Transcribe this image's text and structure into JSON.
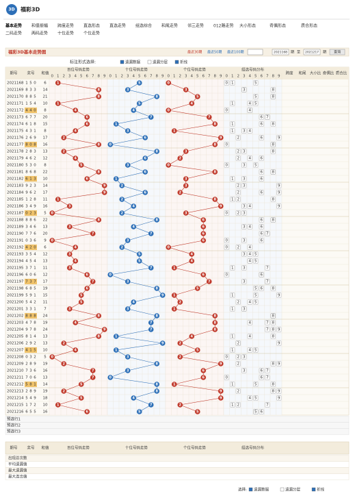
{
  "header": {
    "logo": "3D",
    "title": "福彩3D"
  },
  "nav": [
    "基本走势",
    "和值振幅",
    "跨度走势",
    "直选形态",
    "直选走势",
    "组选综合",
    "和尾走势",
    "邻三走势",
    "012路走势",
    "大小形态",
    "奇偶形态",
    "质合形态",
    "二码走势",
    "两码走势",
    "十位走势",
    "个位走势"
  ],
  "toolbar": {
    "title": "福彩3D基本走势图",
    "ranges": [
      "最近30期",
      "最近50期",
      "最近100期"
    ],
    "start": "2021168",
    "to": "至",
    "end": "2021217",
    "unit": "期",
    "query": "查询"
  },
  "options": {
    "label": "标注形式选择:",
    "items": [
      "遗漏数据",
      "遗漏分层",
      "折线"
    ]
  },
  "columns": {
    "issue": "期号",
    "number": "奖号",
    "sum": "和值",
    "groups": [
      "百位号码走势",
      "十位号码走势",
      "个位号码走势",
      "组选号码分布"
    ],
    "extra": [
      "跨度",
      "和尾",
      "大小比",
      "奇偶比",
      "质合比"
    ]
  },
  "digit_labels": [
    0,
    1,
    2,
    3,
    4,
    5,
    6,
    7,
    8,
    9
  ],
  "rows": [
    {
      "issue": "2021168",
      "digits": [
        1,
        5,
        0
      ],
      "sum": 6
    },
    {
      "issue": "2021169",
      "digits": [
        8,
        3,
        3
      ],
      "sum": 14
    },
    {
      "issue": "2021170",
      "digits": [
        8,
        8,
        5
      ],
      "sum": 21
    },
    {
      "issue": "2021171",
      "digits": [
        1,
        5,
        4
      ],
      "sum": 10
    },
    {
      "issue": "2021172",
      "digits": [
        4,
        4,
        0
      ],
      "sum": 8
    },
    {
      "issue": "2021173",
      "digits": [
        6,
        7,
        7
      ],
      "sum": 20
    },
    {
      "issue": "2021174",
      "digits": [
        6,
        1,
        8
      ],
      "sum": 15
    },
    {
      "issue": "2021175",
      "digits": [
        4,
        3,
        1
      ],
      "sum": 8
    },
    {
      "issue": "2021176",
      "digits": [
        2,
        6,
        9
      ],
      "sum": 17
    },
    {
      "issue": "2021177",
      "digits": [
        8,
        0,
        8
      ],
      "sum": 16
    },
    {
      "issue": "2021178",
      "digits": [
        2,
        8,
        3
      ],
      "sum": 13
    },
    {
      "issue": "2021179",
      "digits": [
        4,
        6,
        2
      ],
      "sum": 12
    },
    {
      "issue": "2021180",
      "digits": [
        5,
        3,
        0
      ],
      "sum": 8
    },
    {
      "issue": "2021181",
      "digits": [
        8,
        6,
        8
      ],
      "sum": 22
    },
    {
      "issue": "2021182",
      "digits": [
        6,
        1,
        3
      ],
      "sum": 10
    },
    {
      "issue": "2021183",
      "digits": [
        9,
        2,
        3
      ],
      "sum": 14
    },
    {
      "issue": "2021184",
      "digits": [
        9,
        6,
        2
      ],
      "sum": 17
    },
    {
      "issue": "2021185",
      "digits": [
        1,
        2,
        8
      ],
      "sum": 11
    },
    {
      "issue": "2021186",
      "digits": [
        3,
        4,
        9
      ],
      "sum": 16
    },
    {
      "issue": "2021187",
      "digits": [
        0,
        2,
        3
      ],
      "sum": 5
    },
    {
      "issue": "2021188",
      "digits": [
        8,
        8,
        6
      ],
      "sum": 22
    },
    {
      "issue": "2021189",
      "digits": [
        3,
        4,
        6
      ],
      "sum": 13
    },
    {
      "issue": "2021190",
      "digits": [
        7,
        7,
        6
      ],
      "sum": 20
    },
    {
      "issue": "2021191",
      "digits": [
        0,
        3,
        6
      ],
      "sum": 9
    },
    {
      "issue": "2021192",
      "digits": [
        4,
        2,
        0
      ],
      "sum": 6
    },
    {
      "issue": "2021193",
      "digits": [
        3,
        5,
        4
      ],
      "sum": 12
    },
    {
      "issue": "2021194",
      "digits": [
        4,
        5,
        4
      ],
      "sum": 13
    },
    {
      "issue": "2021195",
      "digits": [
        3,
        7,
        1
      ],
      "sum": 11
    },
    {
      "issue": "2021196",
      "digits": [
        6,
        0,
        6
      ],
      "sum": 12
    },
    {
      "issue": "2021197",
      "digits": [
        7,
        3,
        7
      ],
      "sum": 17
    },
    {
      "issue": "2021198",
      "digits": [
        6,
        8,
        5
      ],
      "sum": 19
    },
    {
      "issue": "2021199",
      "digits": [
        5,
        9,
        1
      ],
      "sum": 15
    },
    {
      "issue": "2021200",
      "digits": [
        5,
        4,
        2
      ],
      "sum": 11
    },
    {
      "issue": "2021201",
      "digits": [
        3,
        3,
        1
      ],
      "sum": 7
    },
    {
      "issue": "2021202",
      "digits": [
        8,
        8,
        8
      ],
      "sum": 24
    },
    {
      "issue": "2021203",
      "digits": [
        4,
        7,
        8
      ],
      "sum": 19
    },
    {
      "issue": "2021204",
      "digits": [
        9,
        7,
        8
      ],
      "sum": 24
    },
    {
      "issue": "2021205",
      "digits": [
        8,
        1,
        4
      ],
      "sum": 13
    },
    {
      "issue": "2021206",
      "digits": [
        2,
        9,
        2
      ],
      "sum": 13
    },
    {
      "issue": "2021207",
      "digits": [
        4,
        1,
        5
      ],
      "sum": 10
    },
    {
      "issue": "2021208",
      "digits": [
        0,
        3,
        2
      ],
      "sum": 5
    },
    {
      "issue": "2021209",
      "digits": [
        2,
        8,
        9
      ],
      "sum": 19
    },
    {
      "issue": "2021210",
      "digits": [
        7,
        3,
        6
      ],
      "sum": 16
    },
    {
      "issue": "2021211",
      "digits": [
        7,
        0,
        6
      ],
      "sum": 13
    },
    {
      "issue": "2021212",
      "digits": [
        5,
        8,
        1
      ],
      "sum": 14
    },
    {
      "issue": "2021213",
      "digits": [
        2,
        8,
        9
      ],
      "sum": 19
    },
    {
      "issue": "2021214",
      "digits": [
        5,
        4,
        9
      ],
      "sum": 18
    },
    {
      "issue": "2021215",
      "digits": [
        1,
        7,
        2
      ],
      "sum": 10
    },
    {
      "issue": "2021216",
      "digits": [
        6,
        5,
        5
      ],
      "sum": 16
    }
  ],
  "forecast": [
    "预选行1",
    "预选行2",
    "预选行3"
  ],
  "stats": [
    "出现总次数",
    "平均遗漏值",
    "最大遗漏值",
    "最大连出值"
  ],
  "footer": {
    "label": "选择:",
    "items": [
      "遗漏数据",
      "遗漏分层",
      "折线"
    ]
  }
}
